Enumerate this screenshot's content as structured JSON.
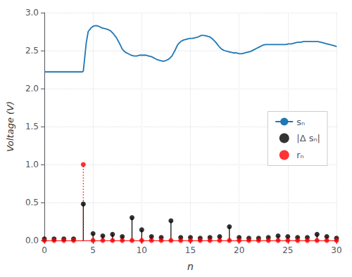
{
  "chart_data": {
    "type": "line",
    "xlabel": "n",
    "ylabel": "Voltage (V)",
    "xlim": [
      0,
      30
    ],
    "ylim": [
      0,
      3.0
    ],
    "xticks": [
      0,
      5,
      10,
      15,
      20,
      25,
      30
    ],
    "yticks": [
      {
        "value": 0,
        "label": "0.0"
      },
      0.5,
      {
        "value": 1,
        "label": "1.0"
      },
      1.5,
      {
        "value": 2,
        "label": "2.0"
      },
      2.5,
      {
        "value": 3,
        "label": "3.0"
      }
    ],
    "grid": true,
    "legend": "right",
    "series": [
      {
        "name": "sₙ",
        "type": "line",
        "color": "#1f77b4",
        "x": [
          0,
          0.3,
          0.6,
          0.9,
          1.2,
          1.5,
          1.8,
          2.1,
          2.4,
          2.7,
          3.0,
          3.3,
          3.5,
          3.7,
          3.9,
          4.0,
          4.1,
          4.3,
          4.5,
          4.8,
          5.0,
          5.3,
          5.6,
          5.9,
          6.2,
          6.5,
          6.8,
          7.1,
          7.4,
          7.7,
          8.0,
          8.3,
          8.6,
          8.9,
          9.2,
          9.5,
          9.8,
          10.1,
          10.4,
          10.7,
          11.0,
          11.3,
          11.6,
          11.9,
          12.2,
          12.5,
          12.8,
          13.1,
          13.4,
          13.7,
          14.0,
          14.3,
          14.6,
          14.9,
          15.2,
          15.5,
          15.8,
          16.1,
          16.4,
          16.7,
          17.0,
          17.3,
          17.6,
          17.9,
          18.2,
          18.5,
          18.8,
          19.1,
          19.4,
          19.7,
          20.0,
          20.3,
          20.6,
          20.9,
          21.2,
          21.5,
          21.8,
          22.1,
          22.4,
          22.7,
          23.0,
          23.3,
          23.6,
          23.9,
          24.2,
          24.5,
          24.8,
          25.1,
          25.4,
          25.7,
          26.0,
          26.3,
          26.6,
          26.9,
          27.2,
          27.5,
          27.8,
          28.1,
          28.4,
          28.7,
          29.0,
          29.3,
          29.6,
          29.9,
          30.0
        ],
        "values": [
          2.22,
          2.22,
          2.22,
          2.22,
          2.22,
          2.22,
          2.22,
          2.22,
          2.22,
          2.22,
          2.22,
          2.22,
          2.22,
          2.22,
          2.22,
          2.23,
          2.35,
          2.6,
          2.75,
          2.8,
          2.82,
          2.83,
          2.82,
          2.8,
          2.79,
          2.78,
          2.76,
          2.72,
          2.67,
          2.6,
          2.52,
          2.48,
          2.46,
          2.44,
          2.43,
          2.43,
          2.44,
          2.44,
          2.44,
          2.43,
          2.42,
          2.4,
          2.38,
          2.37,
          2.36,
          2.37,
          2.39,
          2.43,
          2.5,
          2.58,
          2.62,
          2.64,
          2.65,
          2.66,
          2.66,
          2.67,
          2.68,
          2.7,
          2.7,
          2.69,
          2.68,
          2.65,
          2.61,
          2.56,
          2.52,
          2.5,
          2.49,
          2.48,
          2.47,
          2.47,
          2.46,
          2.46,
          2.47,
          2.48,
          2.49,
          2.51,
          2.53,
          2.55,
          2.57,
          2.58,
          2.58,
          2.58,
          2.58,
          2.58,
          2.58,
          2.58,
          2.58,
          2.59,
          2.59,
          2.6,
          2.61,
          2.61,
          2.62,
          2.62,
          2.62,
          2.62,
          2.62,
          2.62,
          2.61,
          2.6,
          2.59,
          2.58,
          2.57,
          2.56,
          2.55
        ]
      },
      {
        "name": "|Δ sₙ|",
        "type": "stem",
        "color": "black",
        "marker": "circle",
        "line_style": "solid",
        "x": [
          0,
          1,
          2,
          3,
          4,
          5,
          6,
          7,
          8,
          9,
          10,
          11,
          12,
          13,
          14,
          15,
          16,
          17,
          18,
          19,
          20,
          21,
          22,
          23,
          24,
          25,
          26,
          27,
          28,
          29,
          30
        ],
        "values": [
          0.02,
          0.02,
          0.02,
          0.02,
          0.48,
          0.09,
          0.06,
          0.08,
          0.05,
          0.3,
          0.14,
          0.05,
          0.04,
          0.26,
          0.04,
          0.04,
          0.03,
          0.04,
          0.05,
          0.18,
          0.04,
          0.03,
          0.03,
          0.04,
          0.06,
          0.05,
          0.04,
          0.04,
          0.08,
          0.05,
          0.03
        ]
      },
      {
        "name": "rₙ",
        "type": "stem",
        "color": "red",
        "marker": "circle",
        "line_style": "dotted",
        "x": [
          0,
          1,
          2,
          3,
          4,
          5,
          6,
          7,
          8,
          9,
          10,
          11,
          12,
          13,
          14,
          15,
          16,
          17,
          18,
          19,
          20,
          21,
          22,
          23,
          24,
          25,
          26,
          27,
          28,
          29,
          30
        ],
        "values": [
          0.0,
          0.0,
          0.0,
          0.0,
          1.0,
          0.0,
          0.0,
          0.0,
          0.0,
          0.0,
          0.0,
          0.0,
          0.0,
          0.0,
          0.0,
          0.0,
          0.0,
          0.0,
          0.0,
          0.0,
          0.0,
          0.0,
          0.0,
          0.0,
          0.0,
          0.0,
          0.0,
          0.0,
          0.0,
          0.0,
          0.0
        ]
      }
    ]
  }
}
